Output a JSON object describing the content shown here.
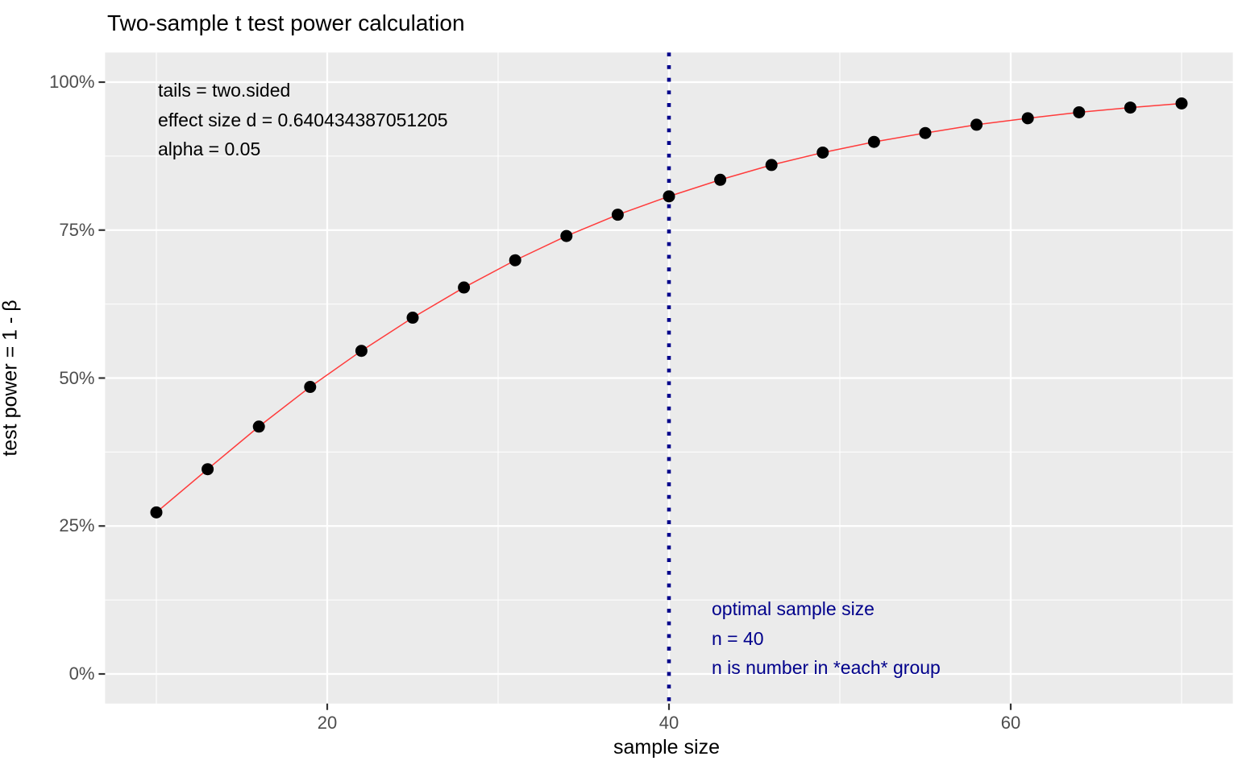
{
  "title": "Two-sample t test power calculation",
  "chart_data": {
    "type": "line",
    "title": "Two-sample t test power calculation",
    "xlabel": "sample size",
    "ylabel": "test power = 1 - β",
    "x": [
      10,
      13,
      16,
      19,
      22,
      25,
      28,
      31,
      34,
      37,
      40,
      43,
      46,
      49,
      52,
      55,
      58,
      61,
      64,
      67,
      70
    ],
    "series": [
      {
        "name": "test power",
        "values": [
          0.273,
          0.346,
          0.418,
          0.485,
          0.546,
          0.602,
          0.653,
          0.699,
          0.74,
          0.776,
          0.807,
          0.835,
          0.86,
          0.881,
          0.899,
          0.914,
          0.928,
          0.939,
          0.949,
          0.957,
          0.964
        ]
      }
    ],
    "xlim": [
      7,
      73
    ],
    "ylim": [
      -0.05,
      1.05
    ],
    "x_major_ticks": [
      20,
      40,
      60
    ],
    "x_tick_labels": [
      "20",
      "40",
      "60"
    ],
    "x_minor_gridlines": [
      10,
      30,
      50,
      70
    ],
    "y_major_ticks": [
      0,
      0.25,
      0.5,
      0.75,
      1.0
    ],
    "y_tick_labels": [
      "0%",
      "25%",
      "50%",
      "75%",
      "100%"
    ],
    "y_minor_gridlines": [
      0.125,
      0.375,
      0.625,
      0.875
    ],
    "grid": true,
    "legend": "none",
    "vline": {
      "x": 40,
      "style": "dotted"
    },
    "annotations": {
      "params": [
        "tails = two.sided",
        "effect size d = 0.640434387051205",
        "alpha = 0.05"
      ],
      "optimal": [
        "optimal sample size",
        "n = 40",
        "n is number in *each* group"
      ]
    },
    "colors": {
      "panel_background": "#EBEBEB",
      "gridline": "#FFFFFF",
      "curve_line": "#FF3B3B",
      "point": "#000000",
      "vline": "#00008B",
      "optimal_text": "#00008B",
      "axis_tick_text": "#4D4D4D",
      "tick_mark": "#333333",
      "title_text": "#000000"
    }
  }
}
